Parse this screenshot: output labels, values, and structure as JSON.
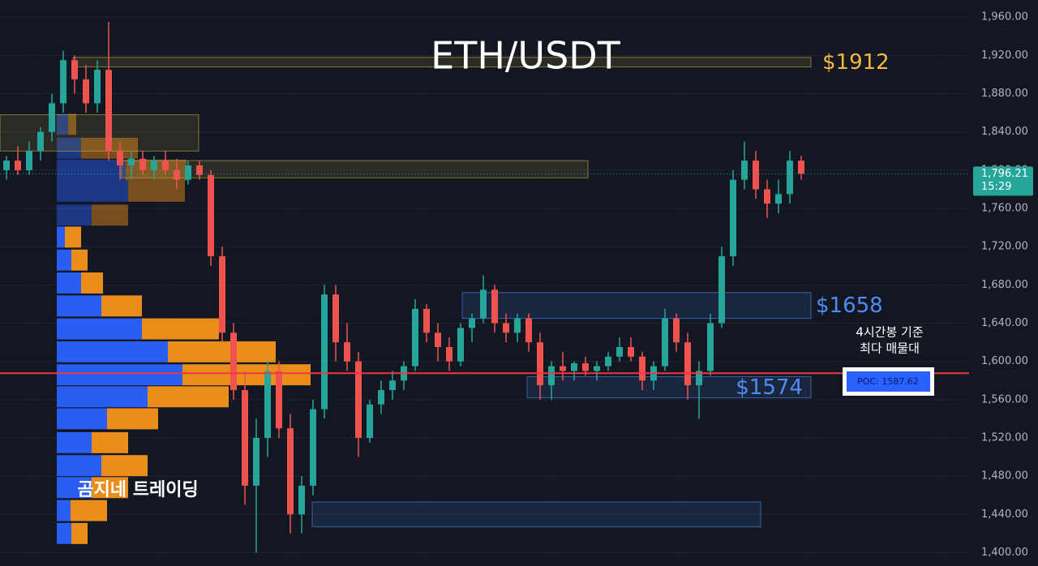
{
  "chart_data": {
    "type": "candlestick",
    "title": "ETH/USDT",
    "ylim": [
      1386,
      1978
    ],
    "yticks": [
      {
        "value": 1400,
        "label": "1,400.00"
      },
      {
        "value": 1440,
        "label": "1,440.00"
      },
      {
        "value": 1480,
        "label": "1,480.00"
      },
      {
        "value": 1520,
        "label": "1,520.00"
      },
      {
        "value": 1560,
        "label": "1,560.00"
      },
      {
        "value": 1600,
        "label": "1,600.00"
      },
      {
        "value": 1640,
        "label": "1,640.00"
      },
      {
        "value": 1680,
        "label": "1,680.00"
      },
      {
        "value": 1720,
        "label": "1,720.00"
      },
      {
        "value": 1760,
        "label": "1,760.00"
      },
      {
        "value": 1800,
        "label": "1,800.00"
      },
      {
        "value": 1840,
        "label": "1,840.00"
      },
      {
        "value": 1880,
        "label": "1,880.00"
      },
      {
        "value": 1920,
        "label": "1,920.00"
      },
      {
        "value": 1960,
        "label": "1,960.00"
      }
    ],
    "grid": true,
    "up_color": "#26a69a",
    "down_color": "#ef5350",
    "ohlc": [
      [
        1800,
        1815,
        1790,
        1810
      ],
      [
        1810,
        1825,
        1795,
        1800
      ],
      [
        1800,
        1830,
        1795,
        1820
      ],
      [
        1820,
        1845,
        1810,
        1840
      ],
      [
        1840,
        1880,
        1830,
        1870
      ],
      [
        1870,
        1925,
        1860,
        1915
      ],
      [
        1915,
        1920,
        1880,
        1895
      ],
      [
        1895,
        1910,
        1860,
        1870
      ],
      [
        1870,
        1915,
        1860,
        1905
      ],
      [
        1905,
        1955,
        1810,
        1820
      ],
      [
        1820,
        1830,
        1790,
        1805
      ],
      [
        1805,
        1820,
        1790,
        1812
      ],
      [
        1812,
        1820,
        1795,
        1800
      ],
      [
        1800,
        1815,
        1790,
        1810
      ],
      [
        1810,
        1820,
        1795,
        1800
      ],
      [
        1800,
        1812,
        1780,
        1790
      ],
      [
        1790,
        1810,
        1785,
        1805
      ],
      [
        1805,
        1810,
        1790,
        1795
      ],
      [
        1795,
        1800,
        1700,
        1710
      ],
      [
        1710,
        1720,
        1620,
        1630
      ],
      [
        1630,
        1640,
        1560,
        1570
      ],
      [
        1570,
        1590,
        1450,
        1470
      ],
      [
        1470,
        1540,
        1400,
        1520
      ],
      [
        1520,
        1600,
        1500,
        1590
      ],
      [
        1590,
        1600,
        1520,
        1530
      ],
      [
        1530,
        1545,
        1420,
        1440
      ],
      [
        1440,
        1480,
        1420,
        1470
      ],
      [
        1470,
        1560,
        1460,
        1550
      ],
      [
        1550,
        1680,
        1540,
        1670
      ],
      [
        1670,
        1680,
        1600,
        1620
      ],
      [
        1620,
        1640,
        1590,
        1600
      ],
      [
        1600,
        1610,
        1500,
        1520
      ],
      [
        1520,
        1560,
        1515,
        1555
      ],
      [
        1555,
        1580,
        1545,
        1570
      ],
      [
        1570,
        1590,
        1560,
        1580
      ],
      [
        1580,
        1600,
        1570,
        1595
      ],
      [
        1595,
        1665,
        1590,
        1655
      ],
      [
        1655,
        1660,
        1620,
        1630
      ],
      [
        1630,
        1640,
        1600,
        1615
      ],
      [
        1615,
        1625,
        1590,
        1600
      ],
      [
        1600,
        1640,
        1595,
        1635
      ],
      [
        1635,
        1650,
        1620,
        1645
      ],
      [
        1645,
        1690,
        1640,
        1675
      ],
      [
        1675,
        1680,
        1630,
        1640
      ],
      [
        1640,
        1650,
        1620,
        1630
      ],
      [
        1630,
        1650,
        1620,
        1645
      ],
      [
        1645,
        1650,
        1610,
        1620
      ],
      [
        1620,
        1630,
        1560,
        1575
      ],
      [
        1575,
        1600,
        1560,
        1595
      ],
      [
        1595,
        1610,
        1580,
        1590
      ],
      [
        1590,
        1600,
        1580,
        1598
      ],
      [
        1598,
        1605,
        1585,
        1590
      ],
      [
        1590,
        1600,
        1580,
        1595
      ],
      [
        1595,
        1610,
        1590,
        1605
      ],
      [
        1605,
        1625,
        1600,
        1615
      ],
      [
        1615,
        1625,
        1600,
        1605
      ],
      [
        1605,
        1610,
        1570,
        1580
      ],
      [
        1580,
        1600,
        1570,
        1595
      ],
      [
        1595,
        1655,
        1590,
        1645
      ],
      [
        1645,
        1650,
        1610,
        1620
      ],
      [
        1620,
        1630,
        1560,
        1575
      ],
      [
        1575,
        1600,
        1540,
        1590
      ],
      [
        1590,
        1650,
        1585,
        1640
      ],
      [
        1640,
        1720,
        1635,
        1710
      ],
      [
        1710,
        1800,
        1700,
        1790
      ],
      [
        1790,
        1830,
        1780,
        1810
      ],
      [
        1810,
        1820,
        1770,
        1780
      ],
      [
        1780,
        1790,
        1750,
        1765
      ],
      [
        1765,
        1790,
        1755,
        1775
      ],
      [
        1775,
        1820,
        1765,
        1810
      ],
      [
        1810,
        1815,
        1790,
        1796.21
      ]
    ],
    "volume_profile": {
      "prices": [
        1848,
        1823,
        1800,
        1778,
        1753,
        1730,
        1706,
        1682,
        1658,
        1634,
        1610,
        1586,
        1563,
        1540,
        1515,
        1491,
        1468,
        1444,
        1420
      ],
      "buy": [
        14,
        30,
        85,
        88,
        43,
        10,
        18,
        30,
        55,
        105,
        137,
        155,
        112,
        62,
        43,
        55,
        43,
        17,
        18
      ],
      "sell": [
        10,
        70,
        75,
        70,
        45,
        20,
        20,
        27,
        50,
        95,
        133,
        158,
        100,
        63,
        45,
        57,
        45,
        45,
        20
      ],
      "buy_color": "#2962ff",
      "sell_color": "#f7931a"
    },
    "zones": [
      {
        "low": 1908,
        "high": 1918,
        "color": "#c8b23c",
        "label": "$1912",
        "label_color": "#f5b942"
      },
      {
        "low": 1645,
        "high": 1672,
        "color": "#4e8df5",
        "label": "$1658",
        "label_color": "#4e8df5"
      },
      {
        "low": 1562,
        "high": 1584,
        "color": "#4e8df5",
        "label": "$1574",
        "label_color": "#4e8df5"
      },
      {
        "low": 1427,
        "high": 1453,
        "color": "#4e8df5"
      },
      {
        "low": 1820,
        "high": 1858,
        "color": "#c8b23c"
      },
      {
        "low": 1792,
        "high": 1810,
        "color": "#c8b23c"
      }
    ],
    "poc": {
      "value": 1587.62,
      "label": "POC: 1587.62",
      "color": "#f23645"
    },
    "annotation": [
      "4시간봉 기준",
      "최다 매물대"
    ],
    "watermark": "곰지네 트레이딩",
    "last_price": {
      "value": 1796.21,
      "label": "1,796.21",
      "timer": "15:29"
    }
  }
}
